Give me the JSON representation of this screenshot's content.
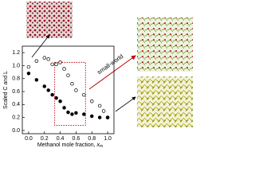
{
  "chart_data": {
    "type": "scatter",
    "xlabel": "Methanol mole fraction, ",
    "xlabel_var": "x",
    "xlabel_sub": "m",
    "ylabel": "Scaled C and L",
    "annotation": "small-world",
    "xlim": [
      -0.08,
      1.08
    ],
    "ylim": [
      -0.05,
      1.3
    ],
    "xticks": [
      {
        "value": 0,
        "label": "0.0"
      },
      0.2,
      0.4,
      0.6,
      0.8,
      {
        "value": 1,
        "label": "1.0"
      }
    ],
    "yticks": [
      {
        "value": 0,
        "label": "0.0"
      },
      0.2,
      0.4,
      0.6,
      0.8,
      {
        "value": 1,
        "label": "1.0"
      },
      1.2
    ],
    "series": [
      {
        "marker": "open",
        "color": "#000000",
        "x": [
          0,
          0.1,
          0.2,
          0.25,
          0.3,
          0.35,
          0.4,
          0.45,
          0.5,
          0.55,
          0.6,
          0.7,
          0.8,
          0.9,
          0.95,
          1.0
        ],
        "values": [
          0.98,
          1.07,
          1.12,
          1.1,
          1.02,
          1.02,
          1.05,
          0.95,
          0.85,
          0.72,
          0.62,
          0.55,
          0.45,
          0.38,
          0.3,
          0.2
        ]
      },
      {
        "marker": "filled",
        "color": "#000000",
        "x": [
          0,
          0.1,
          0.2,
          0.25,
          0.3,
          0.35,
          0.4,
          0.45,
          0.5,
          0.55,
          0.6,
          0.7,
          0.8,
          0.9,
          1.0
        ],
        "values": [
          0.88,
          0.78,
          0.68,
          0.62,
          0.55,
          0.5,
          0.45,
          0.35,
          0.28,
          0.25,
          0.27,
          0.25,
          0.22,
          0.2,
          0.2
        ]
      }
    ]
  }
}
